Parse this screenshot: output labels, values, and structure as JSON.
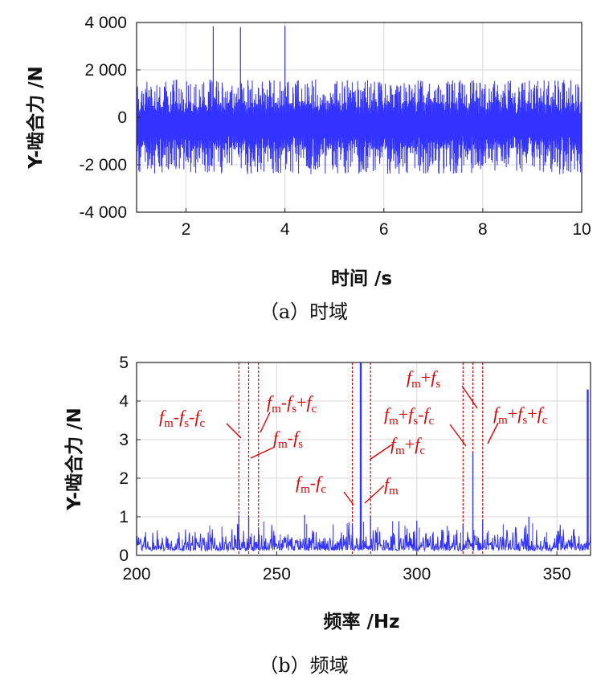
{
  "chart_data": [
    {
      "type": "line",
      "subplot": "a",
      "caption": "（a）时域",
      "xlabel": "时间 /s",
      "ylabel": "Y-啮合力 /N",
      "xlim": [
        1,
        10
      ],
      "ylim": [
        -4000,
        4000
      ],
      "xticks": [
        2,
        4,
        6,
        8,
        10
      ],
      "xtick_labels": [
        "2",
        "4",
        "6",
        "8",
        "10"
      ],
      "yticks": [
        -4000,
        -2000,
        0,
        2000,
        4000
      ],
      "ytick_labels": [
        "-4 000",
        "-2 000",
        "0",
        "2 000",
        "4 000"
      ],
      "grid": true,
      "series_color": "#3333ff",
      "envelope": {
        "typical_max": 1600,
        "typical_min": -2400,
        "center": -300
      },
      "spikes": [
        {
          "x": 2.55,
          "y": 3850
        },
        {
          "x": 3.1,
          "y": 3800
        },
        {
          "x": 4.0,
          "y": 3850
        }
      ]
    },
    {
      "type": "line",
      "subplot": "b",
      "caption": "（b）频域",
      "xlabel": "频率 /Hz",
      "ylabel": "Y-啮合力 /N",
      "xlim": [
        200,
        362
      ],
      "ylim": [
        0,
        5
      ],
      "xticks": [
        200,
        250,
        300,
        350
      ],
      "xtick_labels": [
        "200",
        "250",
        "300",
        "350"
      ],
      "yticks": [
        0,
        1,
        2,
        3,
        4,
        5
      ],
      "ytick_labels": [
        "0",
        "1",
        "2",
        "3",
        "4",
        "5"
      ],
      "grid": true,
      "series_color": "#3333ff",
      "annotation_color": "#e00000",
      "peaks": [
        {
          "x": 280.0,
          "y": 5.0
        },
        {
          "x": 283.5,
          "y": 1.0
        },
        {
          "x": 277.0,
          "y": 0.8
        },
        {
          "x": 320.0,
          "y": 2.65
        },
        {
          "x": 323.5,
          "y": 0.9
        },
        {
          "x": 316.5,
          "y": 0.8
        },
        {
          "x": 240.0,
          "y": 1.0
        },
        {
          "x": 236.5,
          "y": 1.05
        },
        {
          "x": 243.5,
          "y": 0.7
        },
        {
          "x": 260.0,
          "y": 1.05
        },
        {
          "x": 300.0,
          "y": 0.9
        },
        {
          "x": 340.0,
          "y": 1.0
        },
        {
          "x": 361.0,
          "y": 4.3
        }
      ],
      "marker_lines": [
        236.5,
        240.0,
        243.5,
        277.0,
        283.5,
        316.5,
        320.0,
        323.5
      ],
      "annotations": [
        {
          "id": "fm-fs-fc",
          "parts": [
            [
              "f",
              "i"
            ],
            [
              "m",
              "s"
            ],
            [
              "-",
              "u"
            ],
            [
              "f",
              "i"
            ],
            [
              "s",
              "s"
            ],
            [
              "-",
              "u"
            ],
            [
              "f",
              "i"
            ],
            [
              "c",
              "s"
            ]
          ]
        },
        {
          "id": "fm-fs+fc",
          "parts": [
            [
              "f",
              "i"
            ],
            [
              "m",
              "s"
            ],
            [
              "-",
              "u"
            ],
            [
              "f",
              "i"
            ],
            [
              "s",
              "s"
            ],
            [
              "+",
              "u"
            ],
            [
              "f",
              "i"
            ],
            [
              "c",
              "s"
            ]
          ]
        },
        {
          "id": "fm-fs",
          "parts": [
            [
              "f",
              "i"
            ],
            [
              "m",
              "s"
            ],
            [
              "-",
              "u"
            ],
            [
              "f",
              "i"
            ],
            [
              "s",
              "s"
            ]
          ]
        },
        {
          "id": "fm-fc",
          "parts": [
            [
              "f",
              "i"
            ],
            [
              "m",
              "s"
            ],
            [
              "-",
              "u"
            ],
            [
              "f",
              "i"
            ],
            [
              "c",
              "s"
            ]
          ]
        },
        {
          "id": "fm+fc",
          "parts": [
            [
              "f",
              "i"
            ],
            [
              "m",
              "s"
            ],
            [
              "+",
              "u"
            ],
            [
              "f",
              "i"
            ],
            [
              "c",
              "s"
            ]
          ]
        },
        {
          "id": "fm",
          "parts": [
            [
              "f",
              "i"
            ],
            [
              "m",
              "s"
            ]
          ]
        },
        {
          "id": "fm+fs",
          "parts": [
            [
              "f",
              "i"
            ],
            [
              "m",
              "s"
            ],
            [
              "+",
              "u"
            ],
            [
              "f",
              "i"
            ],
            [
              "s",
              "s"
            ]
          ]
        },
        {
          "id": "fm+fs-fc",
          "parts": [
            [
              "f",
              "i"
            ],
            [
              "m",
              "s"
            ],
            [
              "+",
              "u"
            ],
            [
              "f",
              "i"
            ],
            [
              "s",
              "s"
            ],
            [
              "-",
              "u"
            ],
            [
              "f",
              "i"
            ],
            [
              "c",
              "s"
            ]
          ]
        },
        {
          "id": "fm+fs+fc",
          "parts": [
            [
              "f",
              "i"
            ],
            [
              "m",
              "s"
            ],
            [
              "+",
              "u"
            ],
            [
              "f",
              "i"
            ],
            [
              "s",
              "s"
            ],
            [
              "+",
              "u"
            ],
            [
              "f",
              "i"
            ],
            [
              "c",
              "s"
            ]
          ]
        }
      ]
    }
  ]
}
